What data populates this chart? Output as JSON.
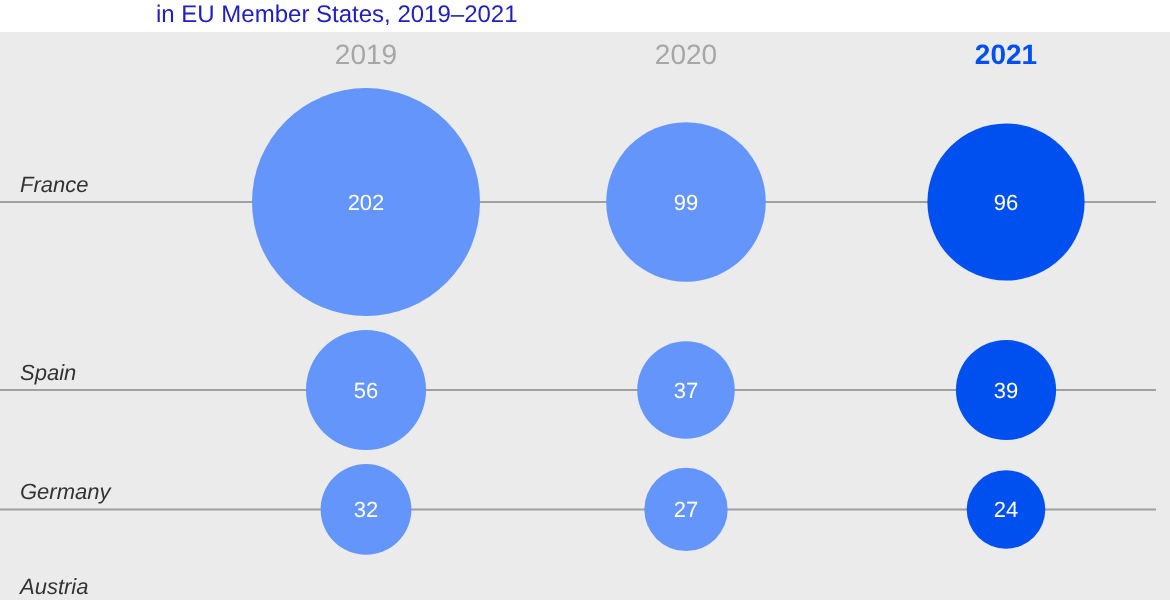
{
  "chart_data": {
    "type": "other",
    "title": "in EU Member States, 2019–2021",
    "categories": [
      "France",
      "Spain",
      "Germany",
      "Austria"
    ],
    "series": [
      {
        "name": "2019",
        "color": "#6495fb",
        "values": [
          202,
          56,
          32,
          null
        ],
        "value_labels": [
          "202",
          "56",
          "32",
          null
        ]
      },
      {
        "name": "2020",
        "color": "#6495fb",
        "values": [
          99,
          37,
          27,
          null
        ],
        "value_labels": [
          "99",
          "37",
          "27",
          null
        ]
      },
      {
        "name": "2021",
        "color": "#0050f0",
        "values": [
          96,
          39,
          24,
          null
        ],
        "value_labels": [
          "96",
          "39",
          "24",
          null
        ]
      }
    ]
  }
}
